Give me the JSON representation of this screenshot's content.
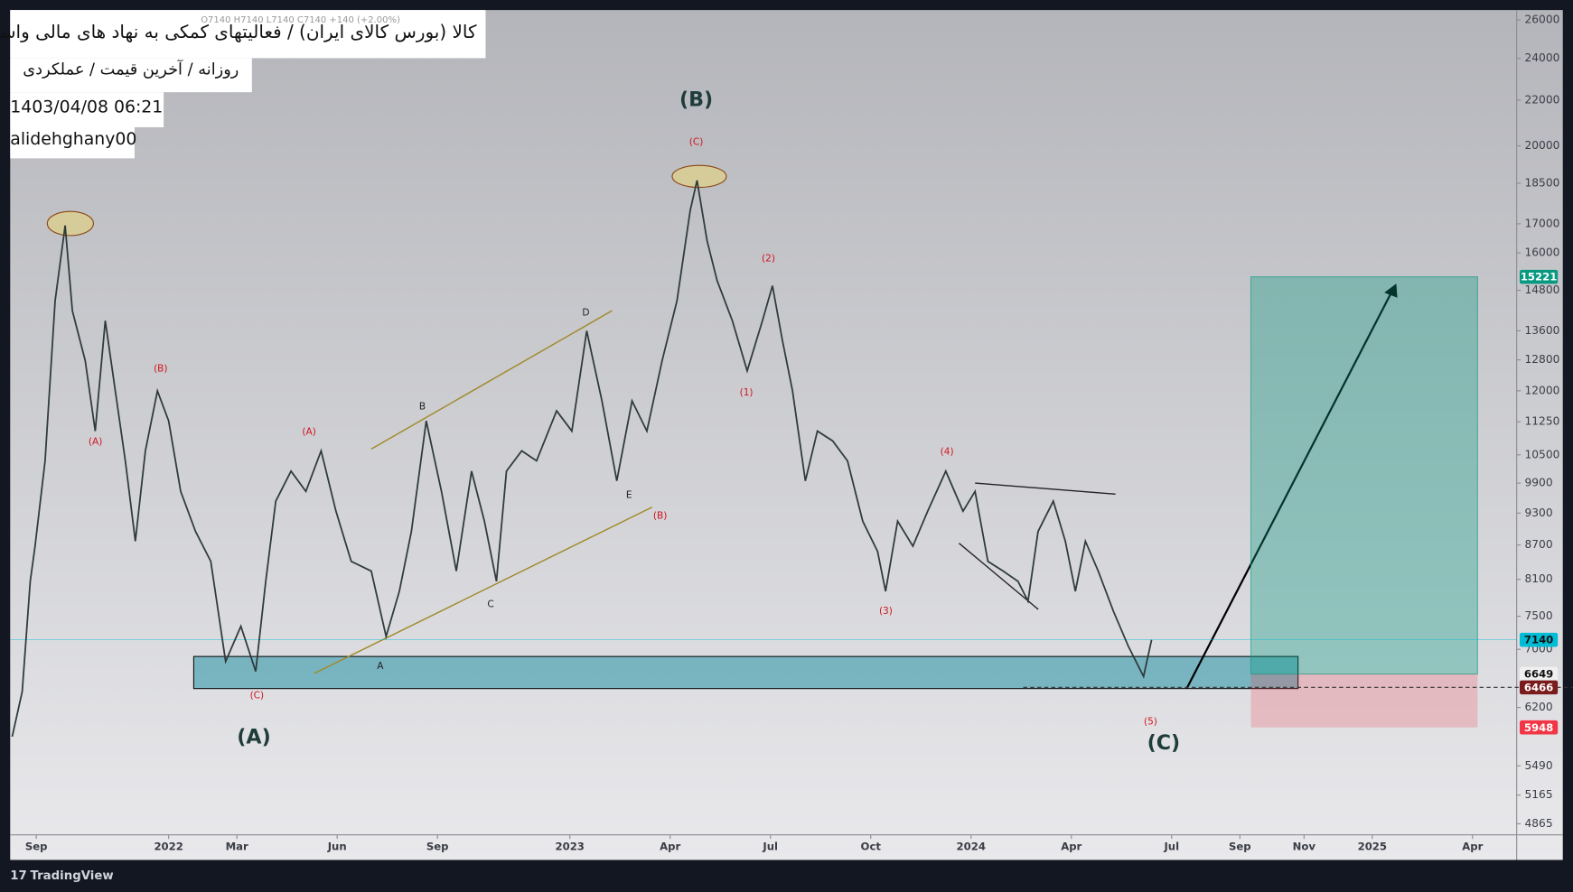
{
  "chart_data": {
    "type": "line",
    "title": "کالا (بورس کالای ایران) / فعالیتهای کمکی به نهاد های مالی واسط",
    "subtitle": "روزانه / آخرین قیمت / عملکردی",
    "timestamp": "1403/04/08 06:21",
    "author": "alidehghany00",
    "ohlc_line": "O7140 H7140 L7140 C7140 +140 (+2.00%)",
    "brand": "TradingView",
    "log_scale": true,
    "xlim": [
      2021.605,
      2025.36
    ],
    "xticks": [
      {
        "value": 2021.67,
        "label": "Sep"
      },
      {
        "value": 2022,
        "label": "2022"
      },
      {
        "value": 2022.17,
        "label": "Mar"
      },
      {
        "value": 2022.42,
        "label": "Jun"
      },
      {
        "value": 2022.67,
        "label": "Sep"
      },
      {
        "value": 2023,
        "label": "2023"
      },
      {
        "value": 2023.25,
        "label": "Apr"
      },
      {
        "value": 2023.5,
        "label": "Jul"
      },
      {
        "value": 2023.75,
        "label": "Oct"
      },
      {
        "value": 2024,
        "label": "2024"
      },
      {
        "value": 2024.25,
        "label": "Apr"
      },
      {
        "value": 2024.5,
        "label": "Jul"
      },
      {
        "value": 2024.67,
        "label": "Sep"
      },
      {
        "value": 2024.83,
        "label": "Nov"
      },
      {
        "value": 2025,
        "label": "2025"
      },
      {
        "value": 2025.25,
        "label": "Apr"
      }
    ],
    "ylim": [
      4754,
      26549
    ],
    "yticks": [
      26000,
      24000,
      22000,
      20000,
      18500,
      17000,
      16000,
      14800,
      13600,
      12800,
      12000,
      11250,
      10500,
      9900,
      9300,
      8700,
      8100,
      7500,
      7000,
      6200,
      5490,
      5165,
      4865
    ],
    "x": [
      2021.61,
      2021.635,
      2021.655,
      2021.667,
      2021.692,
      2021.717,
      2021.742,
      2021.76,
      2021.792,
      2021.817,
      2021.842,
      2021.867,
      2021.892,
      2021.917,
      2021.942,
      2021.972,
      2022.0,
      2022.03,
      2022.067,
      2022.105,
      2022.142,
      2022.18,
      2022.217,
      2022.242,
      2022.267,
      2022.305,
      2022.342,
      2022.38,
      2022.417,
      2022.455,
      2022.505,
      2022.542,
      2022.575,
      2022.605,
      2022.642,
      2022.68,
      2022.717,
      2022.755,
      2022.787,
      2022.817,
      2022.842,
      2022.88,
      2022.917,
      2022.967,
      2023.005,
      2023.042,
      2023.08,
      2023.117,
      2023.155,
      2023.192,
      2023.23,
      2023.267,
      2023.3,
      2023.317,
      2023.342,
      2023.367,
      2023.405,
      2023.442,
      2023.48,
      2023.505,
      2023.53,
      2023.555,
      2023.587,
      2023.617,
      2023.655,
      2023.692,
      2023.73,
      2023.767,
      2023.787,
      2023.817,
      2023.855,
      2023.892,
      2023.937,
      2023.98,
      2024.01,
      2024.042,
      2024.08,
      2024.117,
      2024.142,
      2024.167,
      2024.205,
      2024.235,
      2024.26,
      2024.285,
      2024.317,
      2024.355,
      2024.392,
      2024.43,
      2024.45
    ],
    "series": [
      {
        "name": "کالا",
        "color": "#2f3b3a",
        "values": [
          5835,
          6410,
          8066,
          8680,
          10370,
          14480,
          16940,
          14180,
          12780,
          11035,
          13890,
          12000,
          10370,
          8770,
          10590,
          12000,
          11270,
          9730,
          8950,
          8410,
          6825,
          7345,
          6685,
          8066,
          9535,
          10150,
          9730,
          10590,
          9337,
          8410,
          8240,
          7190,
          7900,
          8950,
          11270,
          9730,
          8240,
          10150,
          9145,
          8066,
          10150,
          10590,
          10370,
          11510,
          11035,
          13600,
          11750,
          9945,
          11750,
          11035,
          12780,
          14480,
          17480,
          18610,
          16415,
          15105,
          13890,
          12510,
          13890,
          14940,
          13320,
          12000,
          9945,
          11035,
          10810,
          10370,
          9145,
          8585,
          7900,
          9145,
          8680,
          9337,
          10150,
          9337,
          9730,
          8410,
          8240,
          8066,
          7738,
          8950,
          9535,
          8770,
          7900,
          8770,
          8240,
          7577,
          7045,
          6615,
          7140
        ]
      }
    ],
    "price_labels": [
      15221,
      7140,
      6649,
      6466,
      5948
    ],
    "wave_labels_major": [
      "(B)",
      "(A)",
      "(C)"
    ],
    "wave_labels_minor": [
      "(C)",
      "(2)",
      "(1)",
      "(B)",
      "(A)",
      "(A)",
      "(C)",
      "(3)",
      "(4)",
      "(5)",
      "(B)"
    ],
    "subwave_labels": [
      "A",
      "B",
      "C",
      "D",
      "E"
    ]
  }
}
